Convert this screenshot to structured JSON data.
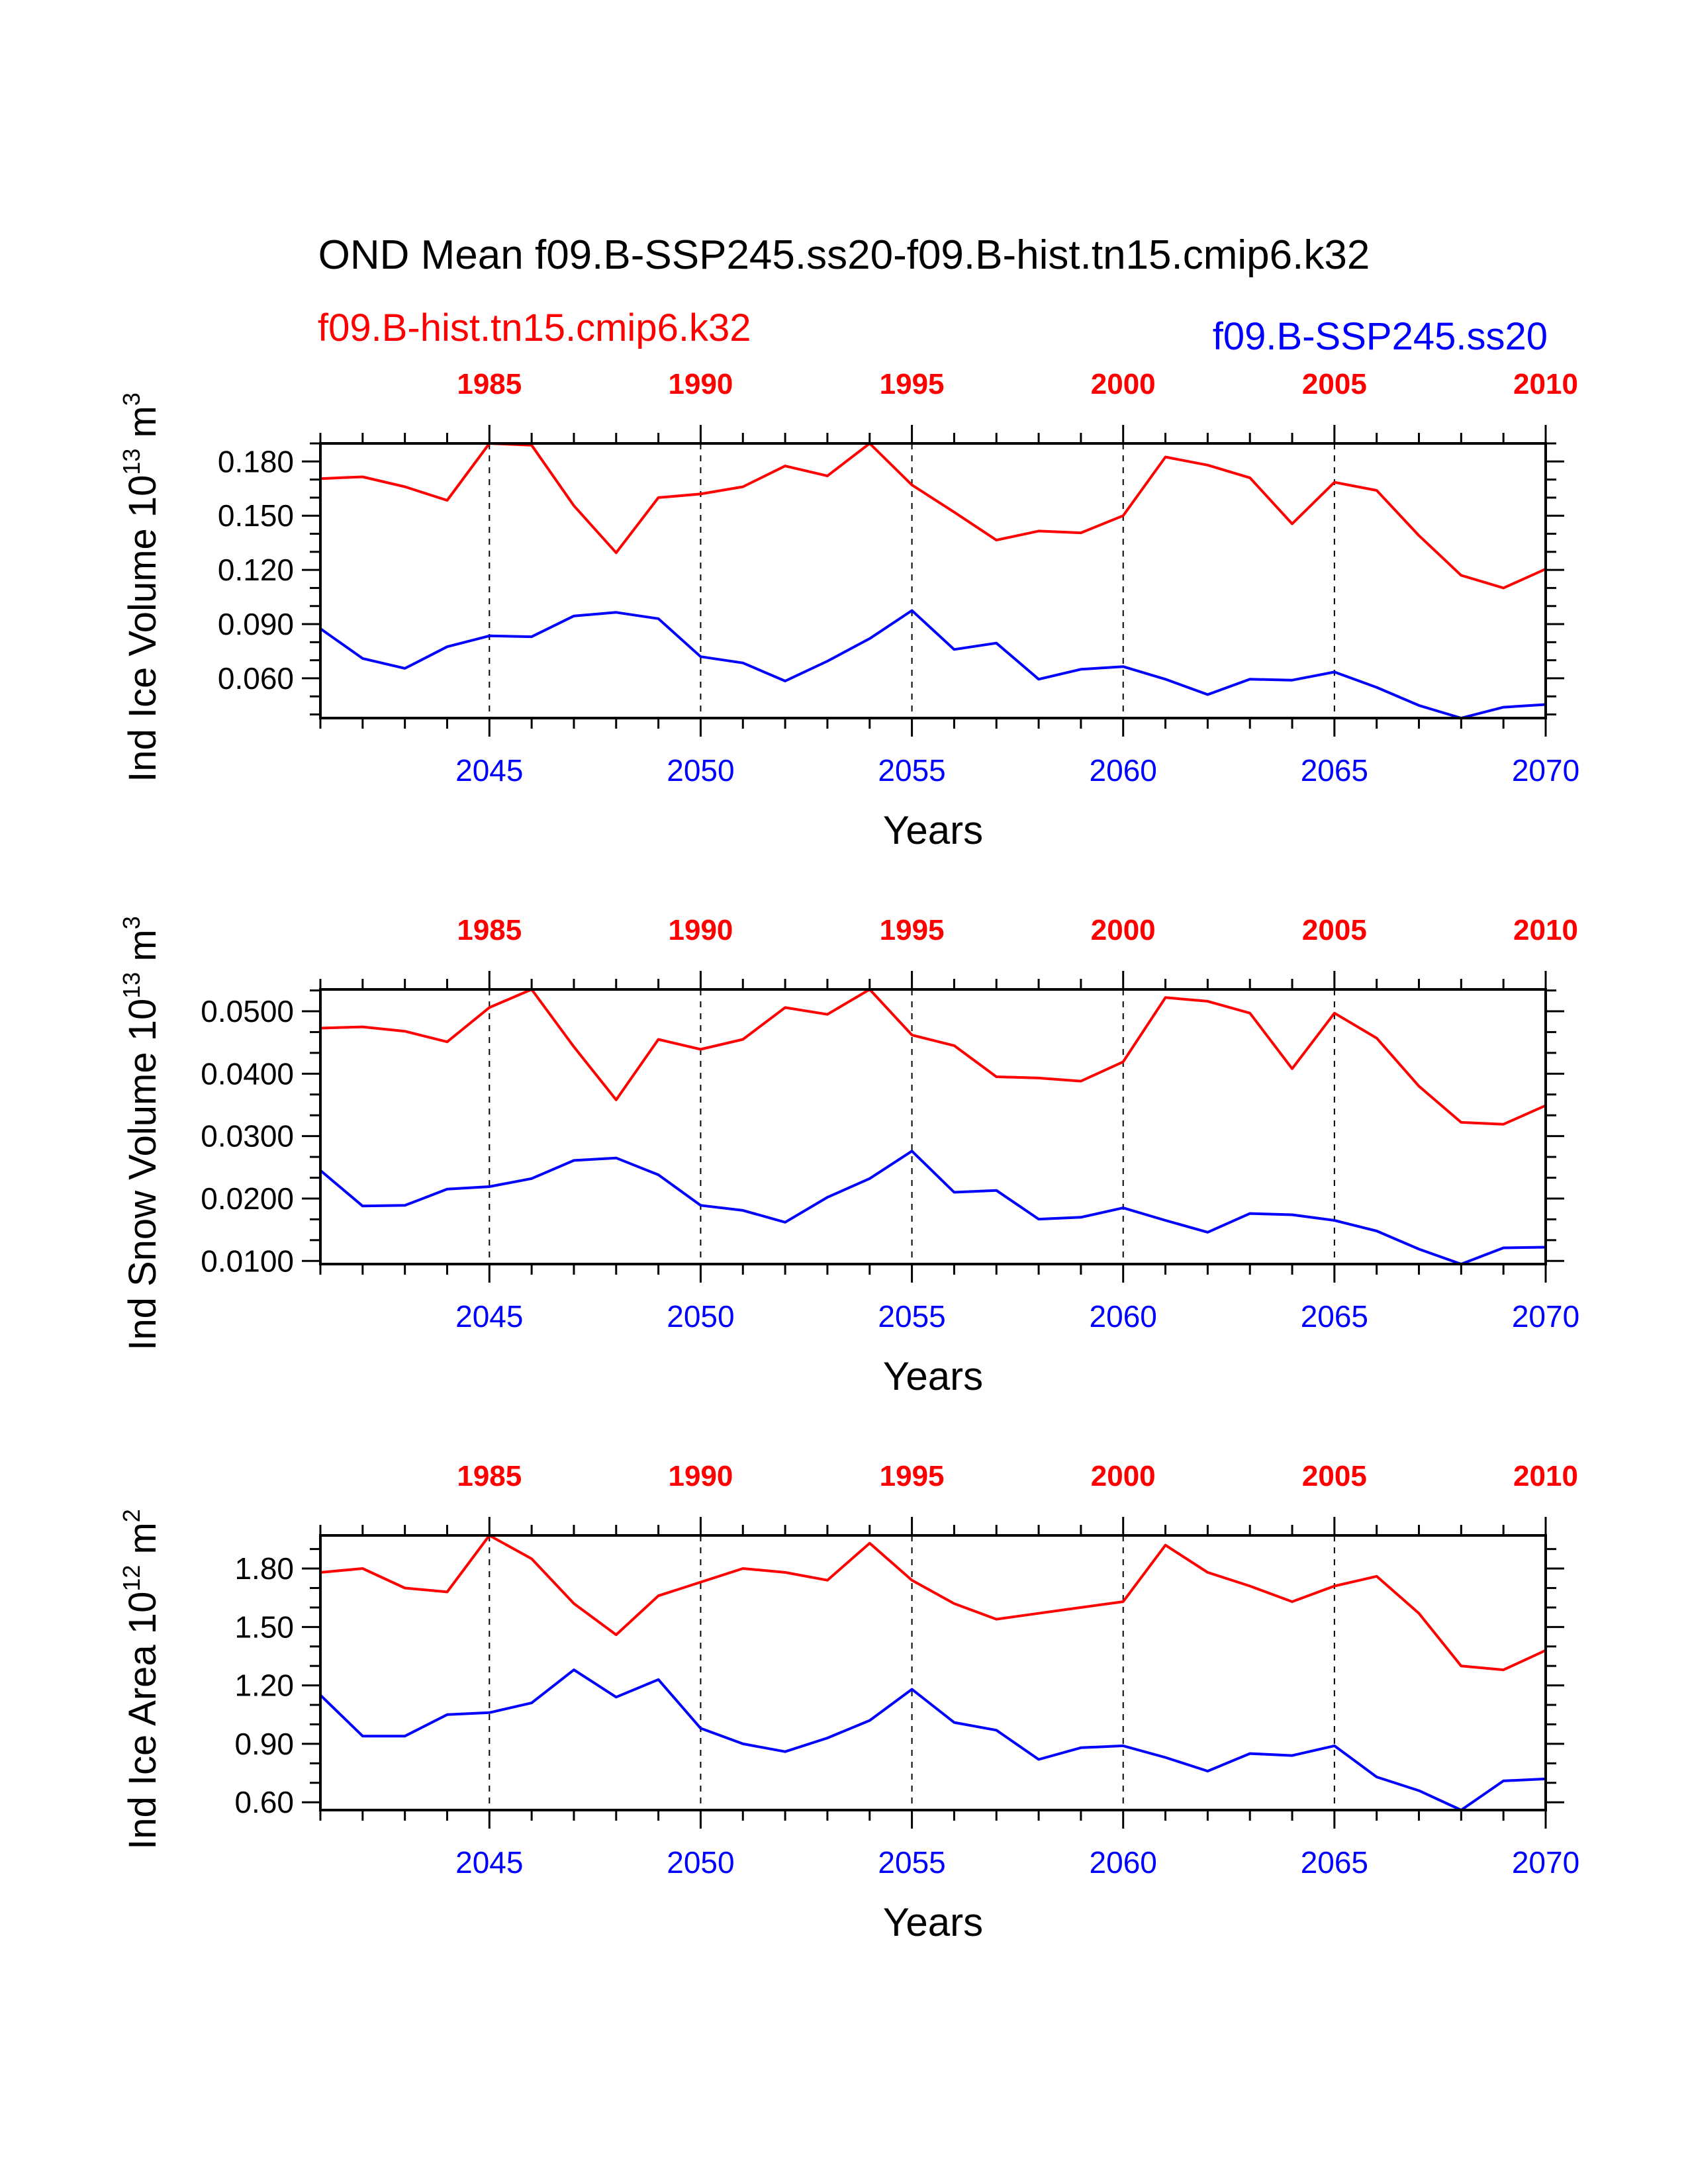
{
  "title": "OND Mean f09.B-SSP245.ss20-f09.B-hist.tn15.cmip6.k32",
  "legend": {
    "top_left": {
      "label": "f09.B-hist.tn15.cmip6.k32",
      "color": "#ff0000"
    },
    "top_right": {
      "label": "f09.B-SSP245.ss20",
      "color": "#0000ff"
    }
  },
  "chart_data": [
    {
      "type": "line",
      "title": "",
      "ylabel": "Ind Ice Volume 10",
      "ylabel_exp": "13",
      "ylabel_unit": "m",
      "ylabel_unit_exp": "3",
      "xlabel": "Years",
      "x_bottom": {
        "min": 2041,
        "max": 2070,
        "ticks": [
          "2045",
          "2050",
          "2055",
          "2060",
          "2065",
          "2070"
        ],
        "tick_values": [
          2045,
          2050,
          2055,
          2060,
          2065,
          2070
        ],
        "color": "#0000ff"
      },
      "x_top": {
        "min": 1981,
        "max": 2010,
        "ticks": [
          "1985",
          "1990",
          "1995",
          "2000",
          "2005",
          "2010"
        ],
        "tick_values": [
          1985,
          1990,
          1995,
          2000,
          2005,
          2010
        ],
        "color": "#ff0000"
      },
      "ylim": [
        0.038,
        0.19
      ],
      "yticks": [
        "0.060",
        "0.090",
        "0.120",
        "0.150",
        "0.180"
      ],
      "ytick_values": [
        0.06,
        0.09,
        0.12,
        0.15,
        0.18
      ],
      "grid_x": [
        2045,
        2050,
        2055,
        2060,
        2065
      ],
      "series": [
        {
          "color": "#ff0000",
          "values": [
            0.1705,
            0.1715,
            0.166,
            0.1585,
            0.19,
            0.189,
            0.1555,
            0.1295,
            0.16,
            0.162,
            0.166,
            0.1775,
            0.172,
            0.19,
            0.167,
            0.152,
            0.1365,
            0.1415,
            0.1405,
            0.15,
            0.1825,
            0.178,
            0.171,
            0.1455,
            0.1685,
            0.164,
            0.139,
            0.117,
            0.11,
            0.1205
          ]
        },
        {
          "color": "#0000ff",
          "values": [
            0.0875,
            0.071,
            0.0655,
            0.0775,
            0.0835,
            0.083,
            0.0945,
            0.0965,
            0.093,
            0.072,
            0.0685,
            0.0585,
            0.0695,
            0.082,
            0.0975,
            0.076,
            0.0795,
            0.0595,
            0.065,
            0.0665,
            0.0595,
            0.051,
            0.0595,
            0.059,
            0.0635,
            0.055,
            0.045,
            0.038,
            0.044,
            0.0455
          ]
        }
      ]
    },
    {
      "type": "line",
      "title": "",
      "ylabel": "Ind Snow Volume 10",
      "ylabel_exp": "13",
      "ylabel_unit": "m",
      "ylabel_unit_exp": "3",
      "xlabel": "Years",
      "x_bottom": {
        "min": 2041,
        "max": 2070,
        "ticks": [
          "2045",
          "2050",
          "2055",
          "2060",
          "2065",
          "2070"
        ],
        "tick_values": [
          2045,
          2050,
          2055,
          2060,
          2065,
          2070
        ],
        "color": "#0000ff"
      },
      "x_top": {
        "min": 1981,
        "max": 2010,
        "ticks": [
          "1985",
          "1990",
          "1995",
          "2000",
          "2005",
          "2010"
        ],
        "tick_values": [
          1985,
          1990,
          1995,
          2000,
          2005,
          2010
        ],
        "color": "#ff0000"
      },
      "ylim": [
        0.0095,
        0.0535
      ],
      "yticks": [
        "0.0100",
        "0.0200",
        "0.0300",
        "0.0400",
        "0.0500"
      ],
      "ytick_values": [
        0.01,
        0.02,
        0.03,
        0.04,
        0.05
      ],
      "grid_x": [
        2045,
        2050,
        2055,
        2060,
        2065
      ],
      "series": [
        {
          "color": "#ff0000",
          "values": [
            0.0473,
            0.0475,
            0.0468,
            0.0451,
            0.0506,
            0.0535,
            0.0443,
            0.0358,
            0.0455,
            0.0439,
            0.0455,
            0.0506,
            0.0495,
            0.0535,
            0.0462,
            0.0445,
            0.0395,
            0.0393,
            0.0388,
            0.0419,
            0.0522,
            0.0516,
            0.0497,
            0.0408,
            0.0497,
            0.0457,
            0.038,
            0.0322,
            0.0319,
            0.0349
          ]
        },
        {
          "color": "#0000ff",
          "values": [
            0.0245,
            0.0188,
            0.0189,
            0.0215,
            0.0219,
            0.0232,
            0.0261,
            0.0265,
            0.0238,
            0.0189,
            0.0181,
            0.0162,
            0.0202,
            0.0232,
            0.0276,
            0.021,
            0.0213,
            0.0167,
            0.017,
            0.0185,
            0.0165,
            0.0146,
            0.0176,
            0.0174,
            0.0165,
            0.0148,
            0.0119,
            0.0095,
            0.0121,
            0.0122
          ]
        }
      ]
    },
    {
      "type": "line",
      "title": "",
      "ylabel": "Ind Ice Area 10",
      "ylabel_exp": "12",
      "ylabel_unit": "m",
      "ylabel_unit_exp": "2",
      "xlabel": "Years",
      "x_bottom": {
        "min": 2041,
        "max": 2070,
        "ticks": [
          "2045",
          "2050",
          "2055",
          "2060",
          "2065",
          "2070"
        ],
        "tick_values": [
          2045,
          2050,
          2055,
          2060,
          2065,
          2070
        ],
        "color": "#0000ff"
      },
      "x_top": {
        "min": 1981,
        "max": 2010,
        "ticks": [
          "1985",
          "1990",
          "1995",
          "2000",
          "2005",
          "2010"
        ],
        "tick_values": [
          1985,
          1990,
          1995,
          2000,
          2005,
          2010
        ],
        "color": "#ff0000"
      },
      "ylim": [
        0.56,
        1.97
      ],
      "yticks": [
        "0.60",
        "0.90",
        "1.20",
        "1.50",
        "1.80"
      ],
      "ytick_values": [
        0.6,
        0.9,
        1.2,
        1.5,
        1.8
      ],
      "grid_x": [
        2045,
        2050,
        2055,
        2060,
        2065
      ],
      "series": [
        {
          "color": "#ff0000",
          "values": [
            1.78,
            1.8,
            1.7,
            1.68,
            1.97,
            1.85,
            1.62,
            1.46,
            1.66,
            1.73,
            1.8,
            1.78,
            1.74,
            1.93,
            1.74,
            1.62,
            1.54,
            1.57,
            1.6,
            1.63,
            1.92,
            1.78,
            1.71,
            1.63,
            1.71,
            1.76,
            1.57,
            1.3,
            1.28,
            1.38
          ]
        },
        {
          "color": "#0000ff",
          "values": [
            1.15,
            0.94,
            0.94,
            1.05,
            1.06,
            1.11,
            1.28,
            1.14,
            1.23,
            0.98,
            0.9,
            0.86,
            0.93,
            1.02,
            1.18,
            1.01,
            0.97,
            0.82,
            0.88,
            0.89,
            0.83,
            0.76,
            0.85,
            0.84,
            0.89,
            0.73,
            0.66,
            0.56,
            0.71,
            0.72
          ]
        }
      ]
    }
  ]
}
